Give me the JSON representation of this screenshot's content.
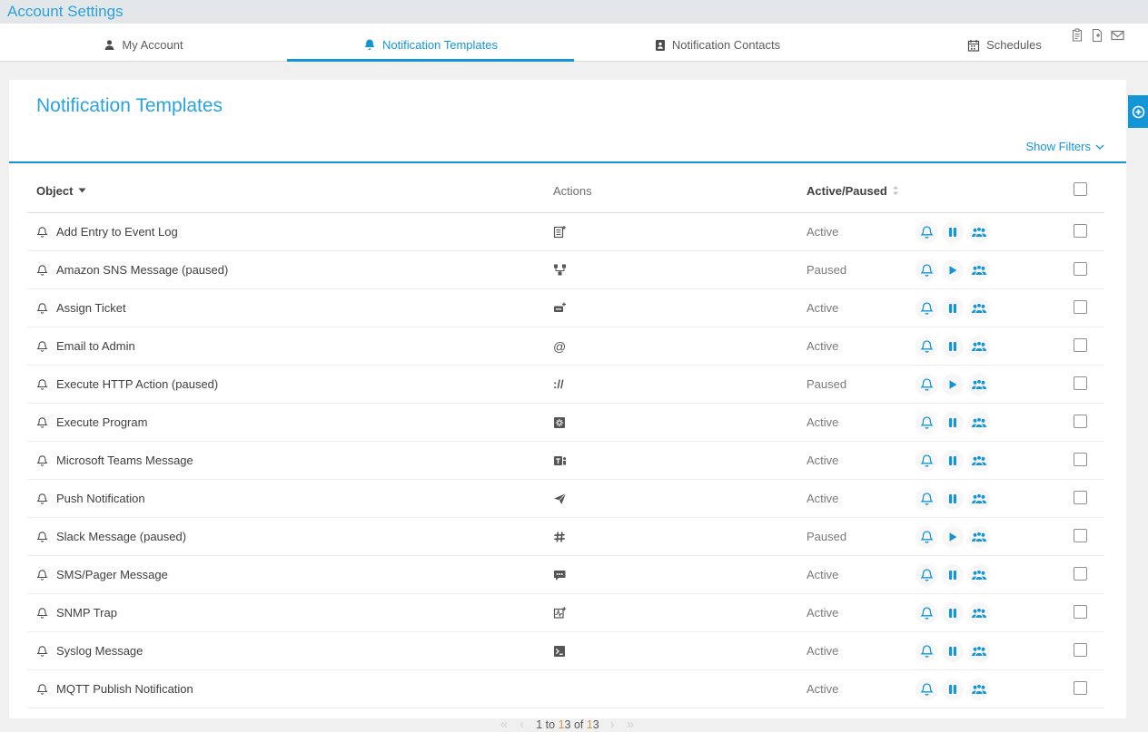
{
  "header": {
    "title": "Account Settings"
  },
  "toolbar": {
    "icons": [
      {
        "name": "clipboard-icon"
      },
      {
        "name": "file-add-icon"
      },
      {
        "name": "envelope-icon"
      }
    ]
  },
  "tabs": [
    {
      "label": "My Account",
      "icon": "user-icon",
      "active": false
    },
    {
      "label": "Notification Templates",
      "icon": "bell-solid-icon",
      "active": true
    },
    {
      "label": "Notification Contacts",
      "icon": "contacts-icon",
      "active": false
    },
    {
      "label": "Schedules",
      "icon": "calendar-icon",
      "active": false
    }
  ],
  "panel": {
    "title": "Notification Templates",
    "show_filters_label": "Show Filters",
    "add_button_icon": "plus-circle-icon"
  },
  "table": {
    "columns": {
      "object": "Object",
      "actions": "Actions",
      "status": "Active/Paused"
    },
    "rows": [
      {
        "name": "Add Entry to Event Log",
        "action_icon": "event-log-icon",
        "status": "Active",
        "state": "active"
      },
      {
        "name": "Amazon SNS Message (paused)",
        "action_icon": "sns-icon",
        "status": "Paused",
        "state": "paused"
      },
      {
        "name": "Assign Ticket",
        "action_icon": "ticket-icon",
        "status": "Active",
        "state": "active"
      },
      {
        "name": "Email to Admin",
        "action_icon": "at-icon",
        "status": "Active",
        "state": "active"
      },
      {
        "name": "Execute HTTP Action (paused)",
        "action_icon": "http-icon",
        "status": "Paused",
        "state": "paused"
      },
      {
        "name": "Execute Program",
        "action_icon": "program-icon",
        "status": "Active",
        "state": "active"
      },
      {
        "name": "Microsoft Teams Message",
        "action_icon": "teams-icon",
        "status": "Active",
        "state": "active"
      },
      {
        "name": "Push Notification",
        "action_icon": "push-icon",
        "status": "Active",
        "state": "active"
      },
      {
        "name": "Slack Message (paused)",
        "action_icon": "slack-icon",
        "status": "Paused",
        "state": "paused"
      },
      {
        "name": "SMS/Pager Message",
        "action_icon": "sms-icon",
        "status": "Active",
        "state": "active"
      },
      {
        "name": "SNMP Trap",
        "action_icon": "snmp-icon",
        "status": "Active",
        "state": "active"
      },
      {
        "name": "Syslog Message",
        "action_icon": "syslog-icon",
        "status": "Active",
        "state": "active"
      },
      {
        "name": "MQTT Publish Notification",
        "action_icon": "",
        "status": "Active",
        "state": "active"
      }
    ]
  },
  "pagination": {
    "first": "«",
    "prev": "‹",
    "p1": "1 to ",
    "p2": "1",
    "p3": "3 of ",
    "p4": "1",
    "p5": "3",
    "next": "›",
    "last": "»"
  },
  "colors": {
    "accent": "#1496d6",
    "heading": "#2aa3dc",
    "status_text": "#7a7a7a",
    "row_text": "#3f3f3f",
    "page_bg": "#f0f0f0",
    "topbar_bg": "#e4e7e9",
    "highlight_digit": "#d99a3e"
  }
}
